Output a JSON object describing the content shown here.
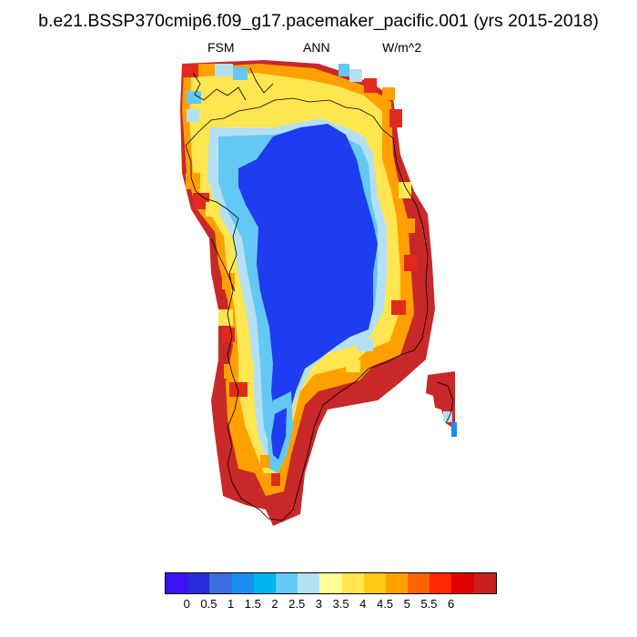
{
  "title": "b.e21.BSSP370cmip6.f09_g17.pacemaker_pacific.001 (yrs 2015-2018)",
  "subtitle_left": "FSM",
  "subtitle_center": "ANN",
  "subtitle_right": "W/m^2",
  "colorbar": {
    "colors": [
      "#3a14f0",
      "#2a2ad8",
      "#3c6de0",
      "#1c8ef0",
      "#00b4f0",
      "#64c8f4",
      "#b4e0f4",
      "#ffff96",
      "#ffe650",
      "#ffc814",
      "#ffa000",
      "#ff6400",
      "#ff2800",
      "#e10000",
      "#c81e1e"
    ],
    "tick_labels": [
      "0",
      "0.5",
      "1",
      "1.5",
      "2",
      "2.5",
      "3",
      "3.5",
      "4",
      "4.5",
      "5",
      "5.5",
      "6"
    ]
  },
  "map": {
    "region": "Greenland",
    "field_colors": {
      "interior": "#1e3cf0",
      "cold_edge": "#64c8f4",
      "pale": "#b4e0f4",
      "yellow": "#ffe650",
      "orange": "#ffa000",
      "red": "#e12a1e",
      "dark_red": "#c82828"
    }
  }
}
